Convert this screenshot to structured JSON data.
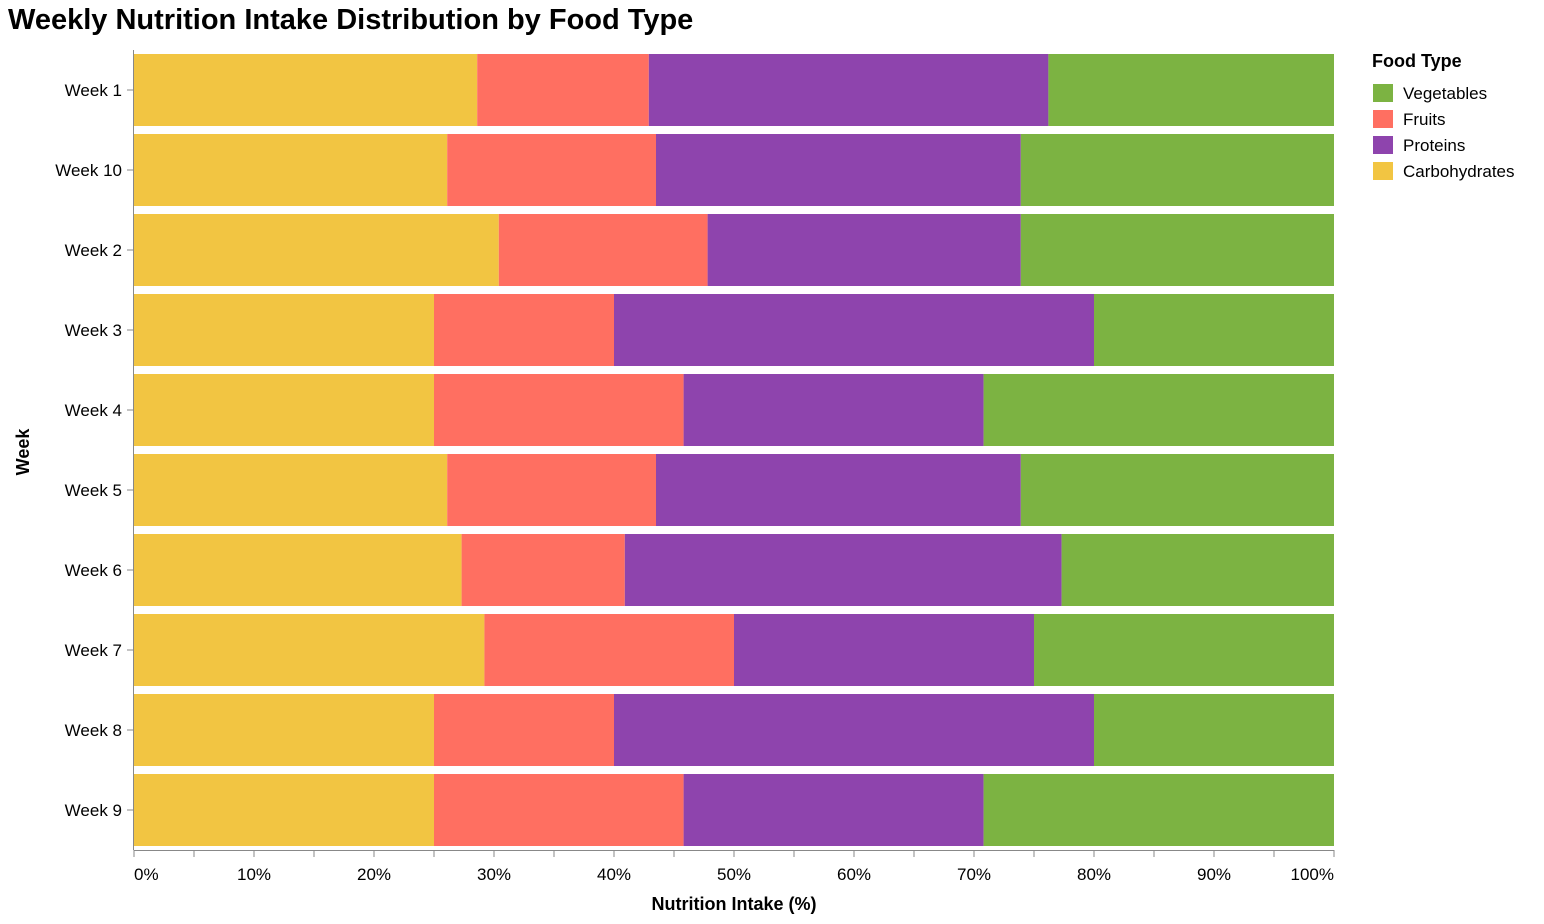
{
  "chart_data": {
    "type": "bar",
    "orientation": "horizontal",
    "stacked": "normalize",
    "title": "Weekly Nutrition Intake Distribution by Food Type",
    "xlabel": "Nutrition Intake (%)",
    "ylabel": "Week",
    "xlim": [
      0,
      100
    ],
    "x_ticks": [
      "0%",
      "10%",
      "20%",
      "30%",
      "40%",
      "50%",
      "60%",
      "70%",
      "80%",
      "90%",
      "100%"
    ],
    "categories": [
      "Week 1",
      "Week 10",
      "Week 2",
      "Week 3",
      "Week 4",
      "Week 5",
      "Week 6",
      "Week 7",
      "Week 8",
      "Week 9"
    ],
    "series": [
      {
        "name": "Carbohydrates",
        "color": "#f2c542",
        "values": [
          28.6,
          26.1,
          30.4,
          25.0,
          25.0,
          26.1,
          27.3,
          29.2,
          25.0,
          25.0
        ]
      },
      {
        "name": "Fruits",
        "color": "#ff6f61",
        "values": [
          14.3,
          17.4,
          17.4,
          15.0,
          20.8,
          17.4,
          13.6,
          20.8,
          15.0,
          20.8
        ]
      },
      {
        "name": "Proteins",
        "color": "#8e44ad",
        "values": [
          33.3,
          30.4,
          26.1,
          40.0,
          25.0,
          30.4,
          36.4,
          25.0,
          40.0,
          25.0
        ]
      },
      {
        "name": "Vegetables",
        "color": "#7cb342",
        "values": [
          23.8,
          26.1,
          26.1,
          20.0,
          29.2,
          26.1,
          22.7,
          25.0,
          20.0,
          29.2
        ]
      }
    ],
    "legend": {
      "title": "Food Type",
      "position": "top-right",
      "order": [
        "Vegetables",
        "Fruits",
        "Proteins",
        "Carbohydrates"
      ]
    },
    "grid": false
  }
}
